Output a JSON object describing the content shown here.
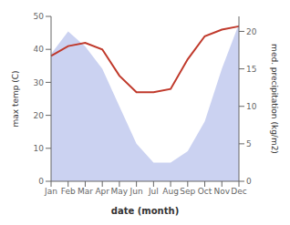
{
  "chart_data": {
    "type": "line",
    "categories": [
      "Jan",
      "Feb",
      "Mar",
      "Apr",
      "May",
      "Jun",
      "Jul",
      "Aug",
      "Sep",
      "Oct",
      "Nov",
      "Dec"
    ],
    "xlabel": "date (month)",
    "ylabel": "max temp (C)",
    "y2label": "med. precipitation (kg/m2)",
    "ylim": [
      0,
      50
    ],
    "yticks": [
      0,
      10,
      20,
      30,
      40,
      50
    ],
    "y2lim": [
      0,
      22
    ],
    "y2ticks": [
      0,
      5,
      10,
      15,
      20
    ],
    "grid": false,
    "series": [
      {
        "type": "area",
        "axis": "y2",
        "color": "#c5cdf0",
        "values": [
          17.0,
          20.0,
          18.0,
          15.0,
          10.0,
          5.0,
          2.5,
          2.5,
          4.0,
          8.0,
          15.0,
          21.0
        ]
      },
      {
        "type": "line",
        "color": "#c0392b",
        "values": [
          38,
          41,
          42,
          40,
          32,
          27,
          27,
          28,
          37,
          44,
          46,
          47
        ]
      }
    ]
  }
}
